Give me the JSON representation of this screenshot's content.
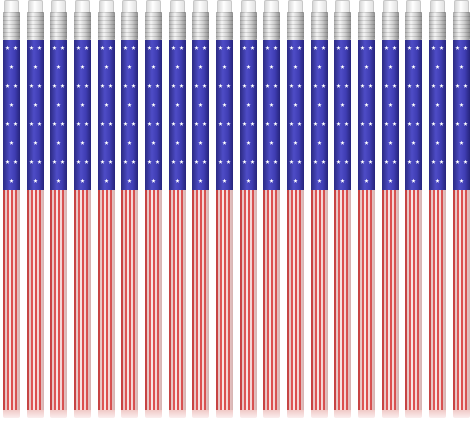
{
  "product": {
    "pencil_count": 20,
    "colors": {
      "navy": "#3f3db3",
      "red": "#d94a4a",
      "white": "#ffffff",
      "silver": "#cfcfcf",
      "eraser": "#ececec"
    }
  }
}
